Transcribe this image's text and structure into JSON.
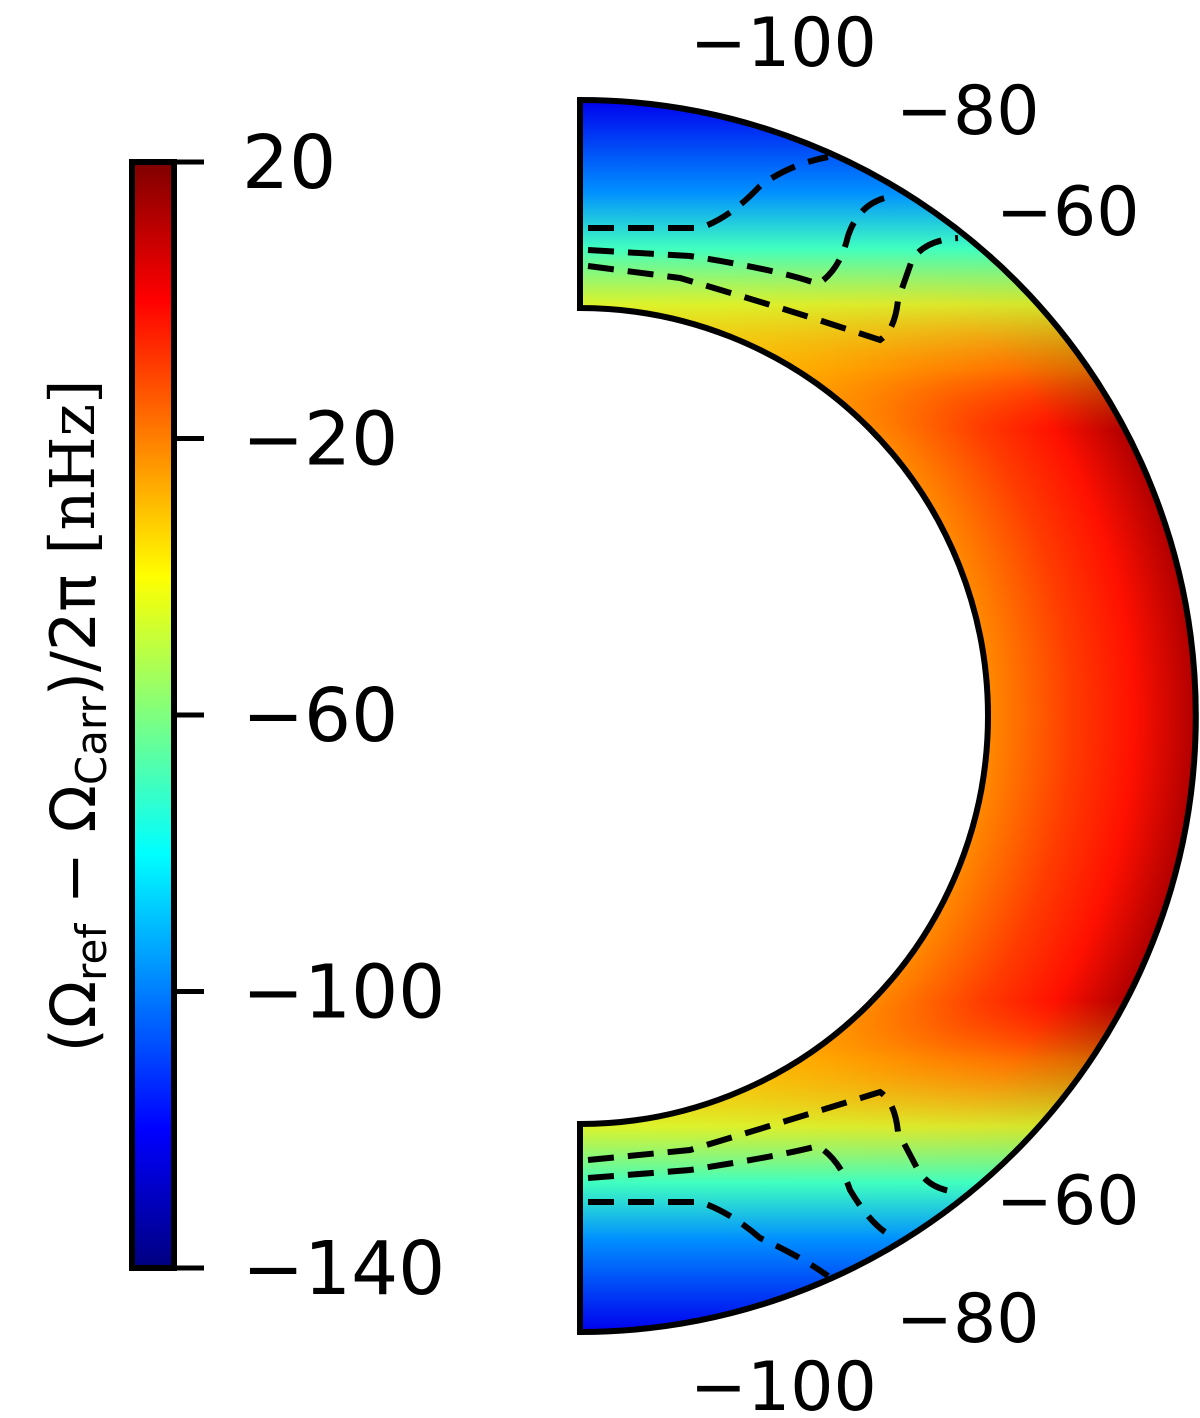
{
  "chart_data": {
    "type": "heatmap",
    "colorbar": {
      "label_parts": [
        "(Ω",
        "ref",
        " − Ω",
        "Carr",
        ")/2π",
        " [nHz]"
      ],
      "ticks": [
        "20",
        "−20",
        "−60",
        "−100",
        "−140"
      ],
      "tick_values": [
        20,
        -20,
        -60,
        -100,
        -140
      ],
      "range": [
        -140,
        20
      ],
      "colormap": "jet",
      "stops": [
        "#00007f",
        "#0000ff",
        "#007fff",
        "#00ffff",
        "#7fff7f",
        "#ffff00",
        "#ff7f00",
        "#ff0000",
        "#7f0000"
      ]
    },
    "contour_levels": [
      -100,
      -80,
      -60
    ],
    "contour_labels": {
      "top": [
        "−100",
        "−80",
        "−60"
      ],
      "bottom": [
        "−60",
        "−80",
        "−100"
      ]
    }
  }
}
